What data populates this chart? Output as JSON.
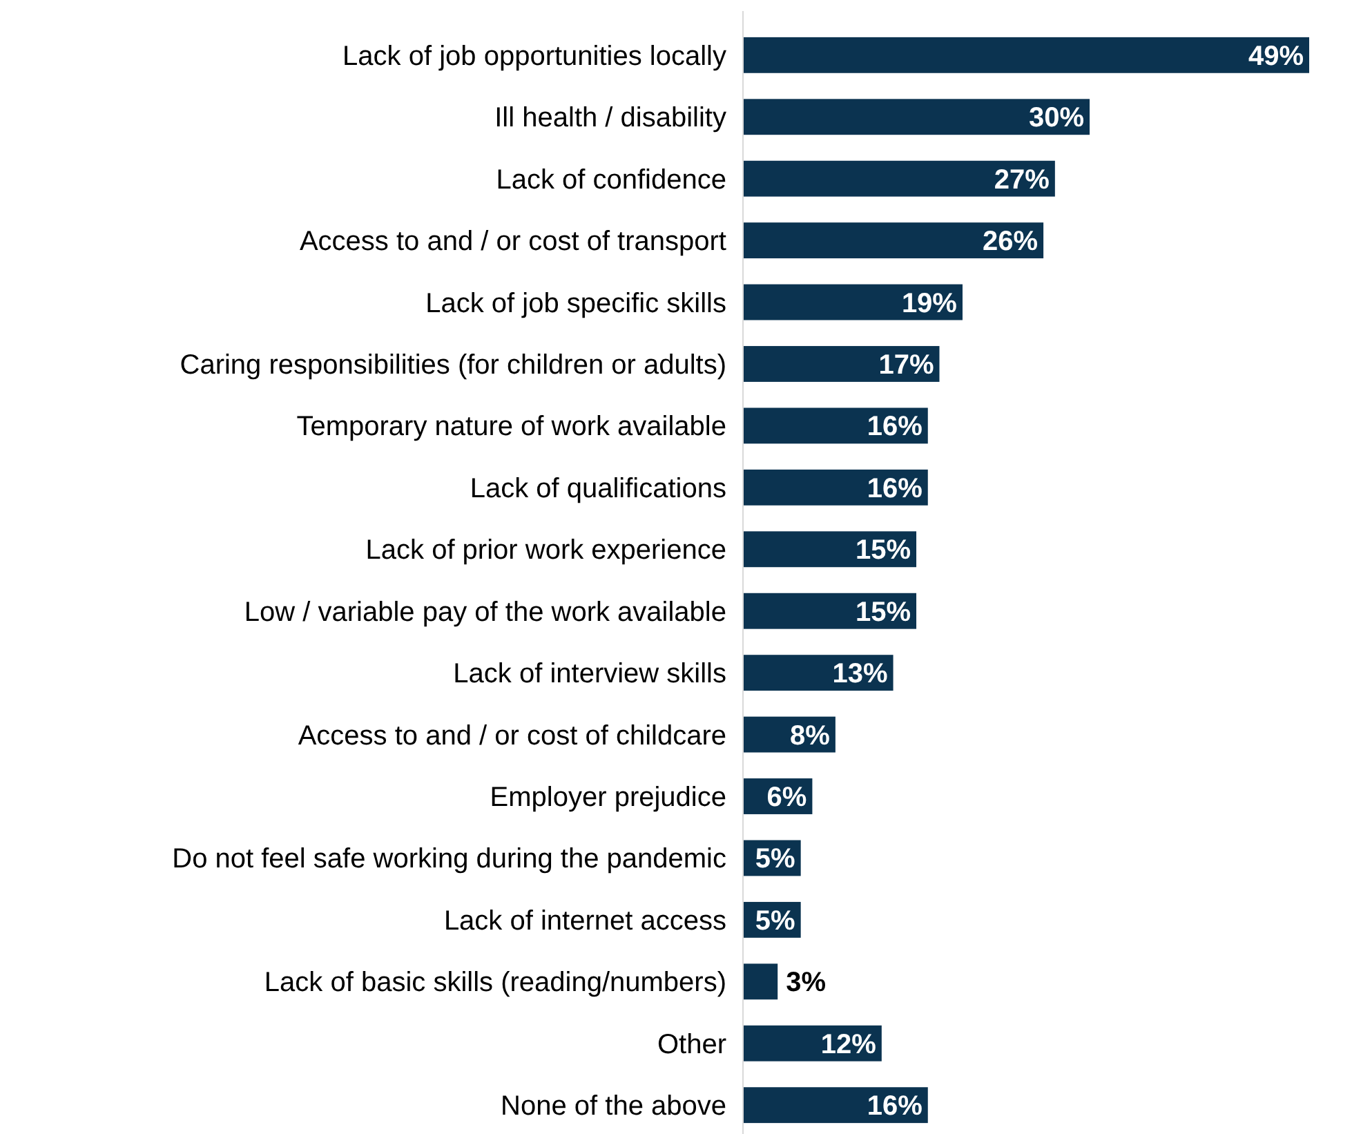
{
  "chart_data": {
    "type": "bar",
    "orientation": "horizontal",
    "color": "#0b3350",
    "categories": [
      "Lack of job opportunities locally",
      "Ill health / disability",
      "Lack of confidence",
      "Access to and / or cost of transport",
      "Lack of job specific skills",
      "Caring responsibilities (for children or adults)",
      "Temporary nature of work available",
      "Lack of qualifications",
      "Lack of prior work experience",
      "Low / variable pay of the work available",
      "Lack of interview skills",
      "Access to and / or cost of childcare",
      "Employer prejudice",
      "Do not feel safe working during the pandemic",
      "Lack of internet access",
      "Lack of basic skills (reading/numbers)",
      "Other",
      "None of the above"
    ],
    "values": [
      49,
      30,
      27,
      26,
      19,
      17,
      16,
      16,
      15,
      15,
      13,
      8,
      6,
      5,
      5,
      3,
      12,
      16
    ],
    "value_labels": [
      "49%",
      "30%",
      "27%",
      "26%",
      "19%",
      "17%",
      "16%",
      "16%",
      "15%",
      "15%",
      "13%",
      "8%",
      "6%",
      "5%",
      "5%",
      "3%",
      "12%",
      "16%"
    ]
  }
}
